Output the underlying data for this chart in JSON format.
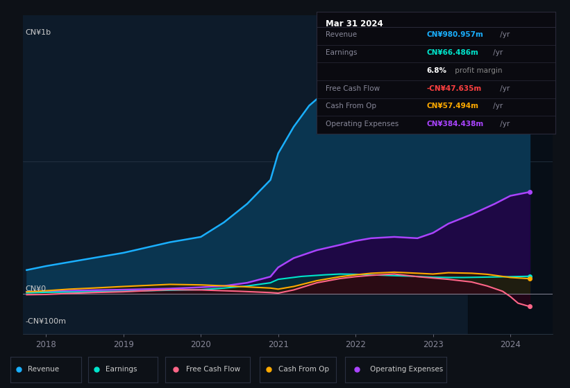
{
  "bg_color": "#0d1117",
  "plot_bg_color": "#0d1b2a",
  "ylabel_top": "CN¥1b",
  "ylabel_zero": "CN¥0",
  "ylabel_neg": "-CN¥100m",
  "xlim": [
    2017.7,
    2024.55
  ],
  "ylim": [
    -150,
    1050
  ],
  "xticks": [
    2018,
    2019,
    2020,
    2021,
    2022,
    2023,
    2024
  ],
  "highlight_x_start": 2023.45,
  "info_box": {
    "title": "Mar 31 2024",
    "rows": [
      {
        "label": "Revenue",
        "value": "CN¥980.957m",
        "suffix": " /yr",
        "color": "#1ab0ff"
      },
      {
        "label": "Earnings",
        "value": "CN¥66.486m",
        "suffix": " /yr",
        "color": "#00e5cc"
      },
      {
        "label": "",
        "value": "6.8%",
        "suffix": " profit margin",
        "color": "#ffffff",
        "suffix_color": "#888888"
      },
      {
        "label": "Free Cash Flow",
        "value": "-CN¥47.635m",
        "suffix": " /yr",
        "color": "#ff4040"
      },
      {
        "label": "Cash From Op",
        "value": "CN¥57.494m",
        "suffix": " /yr",
        "color": "#ffaa00"
      },
      {
        "label": "Operating Expenses",
        "value": "CN¥384.438m",
        "suffix": " /yr",
        "color": "#aa44ff"
      }
    ]
  },
  "series": {
    "revenue": {
      "color": "#1ab0ff",
      "label": "Revenue",
      "x": [
        2017.75,
        2018.0,
        2018.3,
        2018.6,
        2019.0,
        2019.3,
        2019.6,
        2020.0,
        2020.3,
        2020.6,
        2020.9,
        2021.0,
        2021.2,
        2021.4,
        2021.6,
        2021.8,
        2022.0,
        2022.2,
        2022.4,
        2022.6,
        2022.8,
        2023.0,
        2023.2,
        2023.4,
        2023.6,
        2023.8,
        2024.0,
        2024.25
      ],
      "y": [
        90,
        105,
        120,
        135,
        155,
        175,
        195,
        215,
        270,
        340,
        430,
        530,
        630,
        710,
        760,
        785,
        800,
        810,
        800,
        790,
        760,
        745,
        750,
        760,
        790,
        840,
        900,
        981
      ]
    },
    "earnings": {
      "color": "#00e5cc",
      "label": "Earnings",
      "x": [
        2017.75,
        2018.0,
        2018.3,
        2018.6,
        2019.0,
        2019.3,
        2019.6,
        2020.0,
        2020.3,
        2020.6,
        2020.9,
        2021.0,
        2021.3,
        2021.6,
        2021.8,
        2022.0,
        2022.2,
        2022.4,
        2022.6,
        2022.8,
        2023.0,
        2023.2,
        2023.4,
        2023.6,
        2023.8,
        2024.0,
        2024.25
      ],
      "y": [
        4,
        6,
        7,
        8,
        10,
        12,
        14,
        16,
        22,
        30,
        42,
        55,
        66,
        72,
        75,
        74,
        72,
        70,
        68,
        66,
        63,
        62,
        62,
        63,
        64,
        65,
        66.5
      ]
    },
    "free_cash_flow": {
      "color": "#ff6688",
      "label": "Free Cash Flow",
      "x": [
        2017.75,
        2018.0,
        2018.3,
        2018.6,
        2019.0,
        2019.3,
        2019.6,
        2020.0,
        2020.5,
        2020.9,
        2021.0,
        2021.2,
        2021.5,
        2021.8,
        2022.0,
        2022.2,
        2022.5,
        2022.8,
        2023.0,
        2023.2,
        2023.5,
        2023.7,
        2023.9,
        2024.0,
        2024.1,
        2024.25
      ],
      "y": [
        -3,
        -2,
        2,
        5,
        8,
        12,
        16,
        15,
        10,
        5,
        3,
        15,
        42,
        58,
        65,
        70,
        75,
        65,
        60,
        55,
        45,
        30,
        10,
        -10,
        -35,
        -47.6
      ]
    },
    "cash_from_op": {
      "color": "#ffaa00",
      "label": "Cash From Op",
      "x": [
        2017.75,
        2018.0,
        2018.3,
        2018.6,
        2019.0,
        2019.3,
        2019.6,
        2020.0,
        2020.5,
        2020.9,
        2021.0,
        2021.2,
        2021.5,
        2021.8,
        2022.0,
        2022.2,
        2022.5,
        2022.8,
        2023.0,
        2023.2,
        2023.5,
        2023.7,
        2024.0,
        2024.25
      ],
      "y": [
        8,
        12,
        18,
        22,
        28,
        32,
        36,
        34,
        28,
        22,
        18,
        28,
        50,
        65,
        72,
        78,
        82,
        78,
        75,
        80,
        78,
        74,
        62,
        57.5
      ]
    },
    "operating_expenses": {
      "color": "#aa44ff",
      "label": "Operating Expenses",
      "x": [
        2017.75,
        2018.0,
        2018.3,
        2018.6,
        2019.0,
        2019.3,
        2019.6,
        2020.0,
        2020.3,
        2020.6,
        2020.9,
        2021.0,
        2021.2,
        2021.5,
        2021.8,
        2022.0,
        2022.2,
        2022.5,
        2022.8,
        2023.0,
        2023.2,
        2023.5,
        2023.8,
        2024.0,
        2024.25
      ],
      "y": [
        8,
        10,
        12,
        14,
        16,
        18,
        20,
        25,
        30,
        42,
        65,
        100,
        135,
        165,
        185,
        200,
        210,
        215,
        210,
        230,
        265,
        300,
        340,
        370,
        384.4
      ]
    }
  },
  "legend": [
    {
      "label": "Revenue",
      "color": "#1ab0ff"
    },
    {
      "label": "Earnings",
      "color": "#00e5cc"
    },
    {
      "label": "Free Cash Flow",
      "color": "#ff6688"
    },
    {
      "label": "Cash From Op",
      "color": "#ffaa00"
    },
    {
      "label": "Operating Expenses",
      "color": "#aa44ff"
    }
  ]
}
